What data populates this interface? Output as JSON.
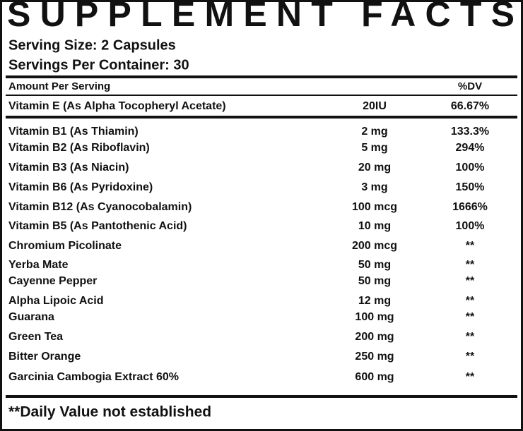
{
  "header": {
    "title": "SUPPLEMENT FACTS",
    "serving_size": "Serving Size: 2 Capsules",
    "servings_per_container": "Servings Per Container: 30"
  },
  "table": {
    "column_headers": {
      "amount_per_serving": "Amount Per Serving",
      "dv": "%DV"
    },
    "rows": [
      [
        "Vitamin E (As Alpha Tocopheryl Acetate)",
        "20IU",
        "66.67%"
      ],
      [
        "Vitamin B1 (As Thiamin)",
        "2 mg",
        "133.3%"
      ],
      [
        "Vitamin B2 (As Riboflavin)",
        "5 mg",
        "294%"
      ],
      [
        "Vitamin B3 (As Niacin)",
        "20 mg",
        "100%"
      ],
      [
        "Vitamin B6 (As Pyridoxine)",
        "3 mg",
        "150%"
      ],
      [
        "Vitamin B12 (As Cyanocobalamin)",
        "100 mcg",
        "1666%"
      ],
      [
        "Vitamin B5 (As Pantothenic Acid)",
        "10 mg",
        "100%"
      ],
      [
        "Chromium Picolinate",
        "200 mcg",
        "**"
      ],
      [
        "Yerba Mate",
        "50 mg",
        "**"
      ],
      [
        "Cayenne Pepper",
        "50 mg",
        "**"
      ],
      [
        "Alpha Lipoic Acid",
        "12 mg",
        "**"
      ],
      [
        "Guarana",
        "100 mg",
        "**"
      ],
      [
        "Green Tea",
        "200 mg",
        "**"
      ],
      [
        "Bitter Orange",
        "250 mg",
        "**"
      ],
      [
        "Garcinia Cambogia Extract 60%",
        "600 mg",
        "**"
      ]
    ]
  },
  "footnote": "**Daily Value not established"
}
